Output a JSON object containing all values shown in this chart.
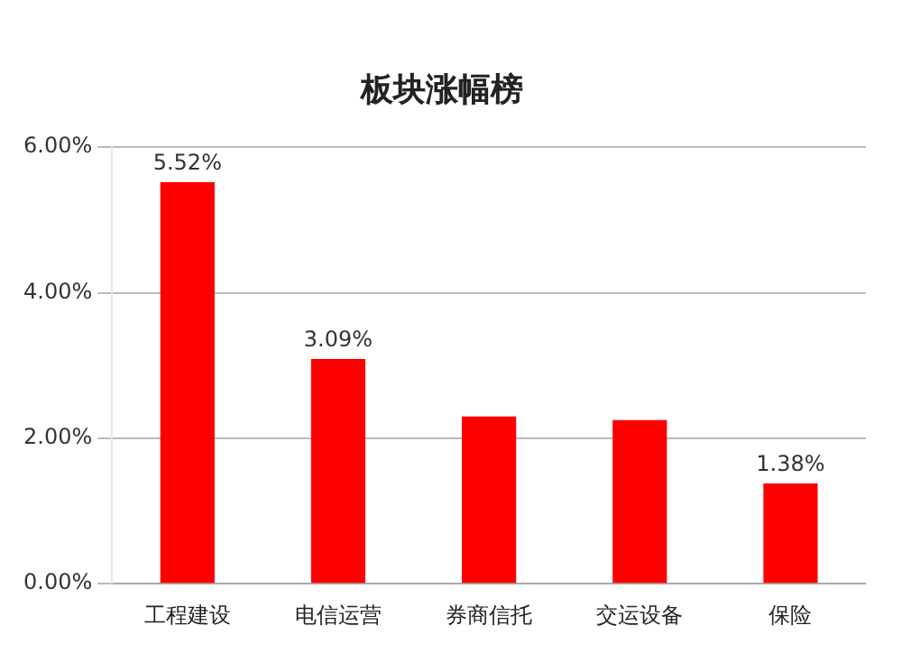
{
  "chart_data": {
    "type": "bar",
    "title": "板块涨幅榜",
    "categories": [
      "工程建设",
      "电信运营",
      "券商信托",
      "交运设备",
      "保险"
    ],
    "values": [
      5.52,
      3.09,
      2.3,
      2.25,
      1.38
    ],
    "color": "#ff0000",
    "value_labels": [
      "5.52%",
      "3.09%",
      null,
      null,
      "1.38%"
    ],
    "ylim": [
      0,
      6
    ],
    "yticks": [
      {
        "value": 0,
        "label": "0.00%"
      },
      {
        "value": 2,
        "label": "2.00%"
      },
      {
        "value": 4,
        "label": "4.00%"
      },
      {
        "value": 6,
        "label": "6.00%"
      }
    ],
    "grid": "y"
  }
}
